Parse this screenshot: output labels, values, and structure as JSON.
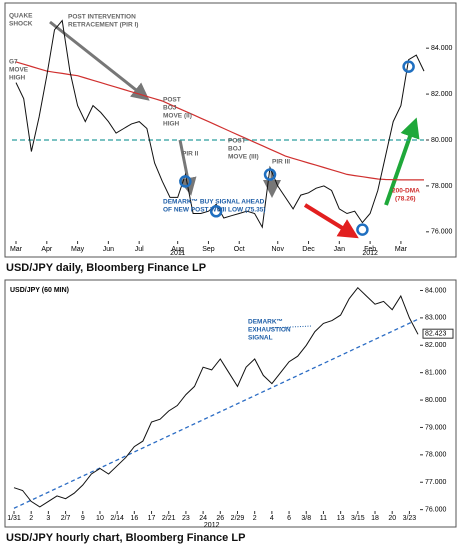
{
  "chart_data": [
    {
      "type": "line",
      "title": "USD/JPY daily, Bloomberg Finance LP",
      "categories": [
        "Mar",
        null,
        null,
        null,
        "Apr",
        null,
        null,
        null,
        "May",
        null,
        null,
        null,
        "Jun",
        null,
        null,
        null,
        "Jul",
        null,
        null,
        null,
        null,
        "Aug",
        null,
        null,
        null,
        "Sep",
        null,
        null,
        null,
        "Oct",
        null,
        null,
        null,
        null,
        "Nov",
        null,
        null,
        null,
        "Dec",
        null,
        null,
        null,
        "Jan",
        null,
        null,
        null,
        "Feb",
        null,
        null,
        null,
        "Mar",
        null,
        null,
        null
      ],
      "year_labels": [
        {
          "index": 21,
          "label": "2011"
        },
        {
          "index": 46,
          "label": "2012"
        }
      ],
      "values": [
        82.5,
        81.8,
        79.5,
        81.0,
        82.8,
        84.8,
        85.2,
        83.0,
        81.5,
        80.8,
        81.5,
        81.2,
        80.8,
        80.3,
        80.5,
        80.7,
        80.8,
        80.5,
        79.0,
        78.2,
        77.5,
        77.5,
        78.5,
        76.8,
        76.8,
        76.9,
        77.2,
        76.6,
        76.7,
        76.8,
        76.9,
        76.8,
        76.2,
        78.8,
        78.0,
        77.5,
        77.0,
        77.6,
        77.7,
        77.9,
        78.0,
        77.8,
        77.0,
        76.8,
        76.9,
        76.4,
        76.8,
        77.8,
        79.3,
        80.8,
        81.5,
        83.5,
        83.7,
        83.0
      ],
      "color": "#111111",
      "dma": {
        "label": "200-DMA",
        "value_label": "(78.26)",
        "color": "#d0302f",
        "values": [
          83.4,
          83.3,
          83.2,
          83.1,
          83.0,
          82.95,
          82.9,
          82.85,
          82.8,
          82.7,
          82.6,
          82.5,
          82.4,
          82.3,
          82.2,
          82.1,
          82.0,
          81.9,
          81.8,
          81.7,
          81.55,
          81.4,
          81.25,
          81.1,
          80.95,
          80.8,
          80.65,
          80.5,
          80.35,
          80.2,
          80.05,
          79.9,
          79.75,
          79.6,
          79.45,
          79.3,
          79.2,
          79.1,
          79.0,
          78.9,
          78.8,
          78.7,
          78.6,
          78.5,
          78.45,
          78.4,
          78.35,
          78.3,
          78.28,
          78.27,
          78.26,
          78.26,
          78.26,
          78.26
        ]
      },
      "hline": {
        "value": 80,
        "color": "#2a9d9d"
      },
      "ylim": [
        75.6,
        85.75
      ],
      "yticks": [
        {
          "value": 76,
          "label": "76.000"
        },
        {
          "value": 78,
          "label": "78.000"
        },
        {
          "value": 80,
          "label": "80.000"
        },
        {
          "value": 82,
          "label": "82.000"
        },
        {
          "value": 84,
          "label": "84.000"
        }
      ],
      "annotations": [
        {
          "lines": [
            "QUAKE",
            "SHOCK"
          ]
        },
        {
          "lines": [
            "G7",
            "MOVE",
            "HIGH"
          ]
        },
        {
          "lines": [
            "POST INTERVENTION",
            "RETRACEMENT (PIR I)"
          ]
        },
        {
          "lines": [
            "POST",
            "BOJ",
            "MOVE (II)",
            "HIGH"
          ]
        },
        {
          "lines": [
            "PIR II"
          ]
        },
        {
          "lines": [
            "POST",
            "BOJ",
            "MOVE (III)"
          ]
        },
        {
          "lines": [
            "PIR III"
          ]
        },
        {
          "lines": [
            "DEMARK™ BUY SIGNAL AHEAD",
            "OF NEW POST WWII LOW (75.35)"
          ]
        }
      ]
    },
    {
      "type": "line",
      "title": "USD/JPY hourly chart, Bloomberg Finance LP",
      "header": "USD/JPY (60 MIN)",
      "categories": [
        "1/31",
        null,
        "2",
        null,
        "3",
        null,
        "2/7",
        null,
        "9",
        null,
        "10",
        null,
        "2/14",
        null,
        "16",
        null,
        "17",
        null,
        "2/21",
        null,
        "23",
        null,
        "24",
        null,
        "26",
        null,
        "2/29",
        null,
        "2",
        null,
        "4",
        null,
        "6",
        null,
        "3/8",
        null,
        "11",
        null,
        "13",
        null,
        "3/15",
        null,
        "18",
        null,
        "20",
        null,
        "3/23",
        null
      ],
      "year_labels": [
        {
          "index": 23,
          "label": "2012"
        }
      ],
      "values": [
        76.8,
        76.7,
        76.3,
        76.1,
        76.3,
        76.5,
        76.4,
        76.6,
        76.9,
        77.3,
        77.5,
        77.3,
        77.6,
        77.9,
        78.3,
        78.5,
        79.2,
        79.3,
        79.6,
        79.8,
        80.2,
        80.5,
        81.2,
        81.1,
        81.5,
        81.0,
        80.5,
        81.2,
        81.5,
        80.9,
        80.6,
        81.0,
        81.4,
        81.6,
        82.0,
        82.5,
        82.8,
        82.9,
        83.1,
        83.7,
        84.1,
        83.8,
        83.5,
        83.6,
        83.3,
        83.8,
        83.0,
        82.4
      ],
      "color": "#111111",
      "last_price": 82.423,
      "trendline": {
        "values": [
          76.05,
          82.95
        ],
        "color": "#2b6cc4"
      },
      "ylim": [
        75.95,
        84.2
      ],
      "yticks": [
        {
          "value": 76,
          "label": "76.000"
        },
        {
          "value": 77,
          "label": "77.000"
        },
        {
          "value": 78,
          "label": "78.000"
        },
        {
          "value": 79,
          "label": "79.000"
        },
        {
          "value": 80,
          "label": "80.000"
        },
        {
          "value": 81,
          "label": "81.000"
        },
        {
          "value": 82,
          "label": "82.000"
        },
        {
          "value": 83,
          "label": "83.000"
        },
        {
          "value": 84,
          "label": "84.000"
        }
      ],
      "annotations": [
        {
          "lines": [
            "DEMARK™",
            "EXHAUSTION",
            "SIGNAL"
          ]
        }
      ]
    }
  ]
}
